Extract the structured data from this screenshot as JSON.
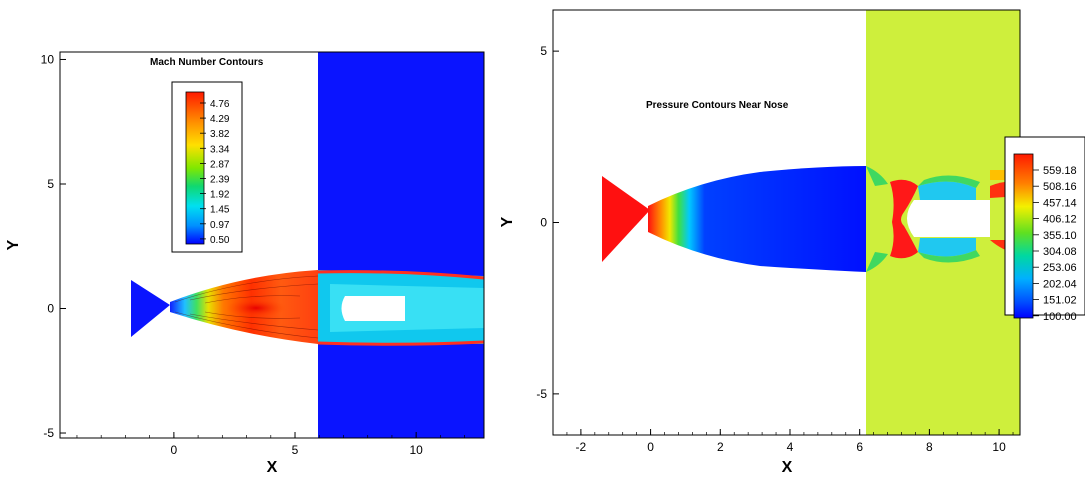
{
  "chart_data": [
    {
      "type": "heatmap",
      "title": "Mach Number Contours",
      "xlabel": "X",
      "ylabel": "Y",
      "xlim": [
        -4.7,
        12.8
      ],
      "ylim": [
        -5.2,
        10.3
      ],
      "xticks": [
        0,
        5,
        10
      ],
      "yticks": [
        -5,
        0,
        5,
        10
      ],
      "grid": false,
      "legend": {
        "placement": "top-left",
        "levels": [
          "4.76",
          "4.29",
          "3.82",
          "3.34",
          "2.87",
          "2.39",
          "1.92",
          "1.45",
          "0.97",
          "0.50"
        ],
        "colors": [
          "#ff1a00",
          "#ff6000",
          "#ffa000",
          "#ffdc00",
          "#c8f000",
          "#6ee800",
          "#14d864",
          "#00e6e6",
          "#00a0ff",
          "#0000ff"
        ]
      },
      "background_color": "#ffffff",
      "inflow_color": "#0a14ff",
      "inflow_x_start": 6.2
    },
    {
      "type": "heatmap",
      "title": "Pressure Contours Near Nose",
      "xlabel": "X",
      "ylabel": "Y",
      "xlim": [
        -2.8,
        10.6
      ],
      "ylim": [
        -6.2,
        6.2
      ],
      "xticks": [
        -2,
        0,
        2,
        4,
        6,
        8,
        10
      ],
      "yticks": [
        -5,
        0,
        5
      ],
      "grid": false,
      "legend": {
        "placement": "right",
        "levels": [
          "559.18",
          "508.16",
          "457.14",
          "406.12",
          "355.10",
          "304.08",
          "253.06",
          "202.04",
          "151.02",
          "100.00"
        ],
        "colors": [
          "#ff1a00",
          "#ff7000",
          "#ffc000",
          "#f4f000",
          "#a8ec00",
          "#40dc20",
          "#00d8a0",
          "#00b4ff",
          "#0060ff",
          "#0000ff"
        ]
      },
      "freestream_color": "#c8ef38",
      "freestream_x_range": [
        6.0,
        10.3
      ]
    }
  ]
}
